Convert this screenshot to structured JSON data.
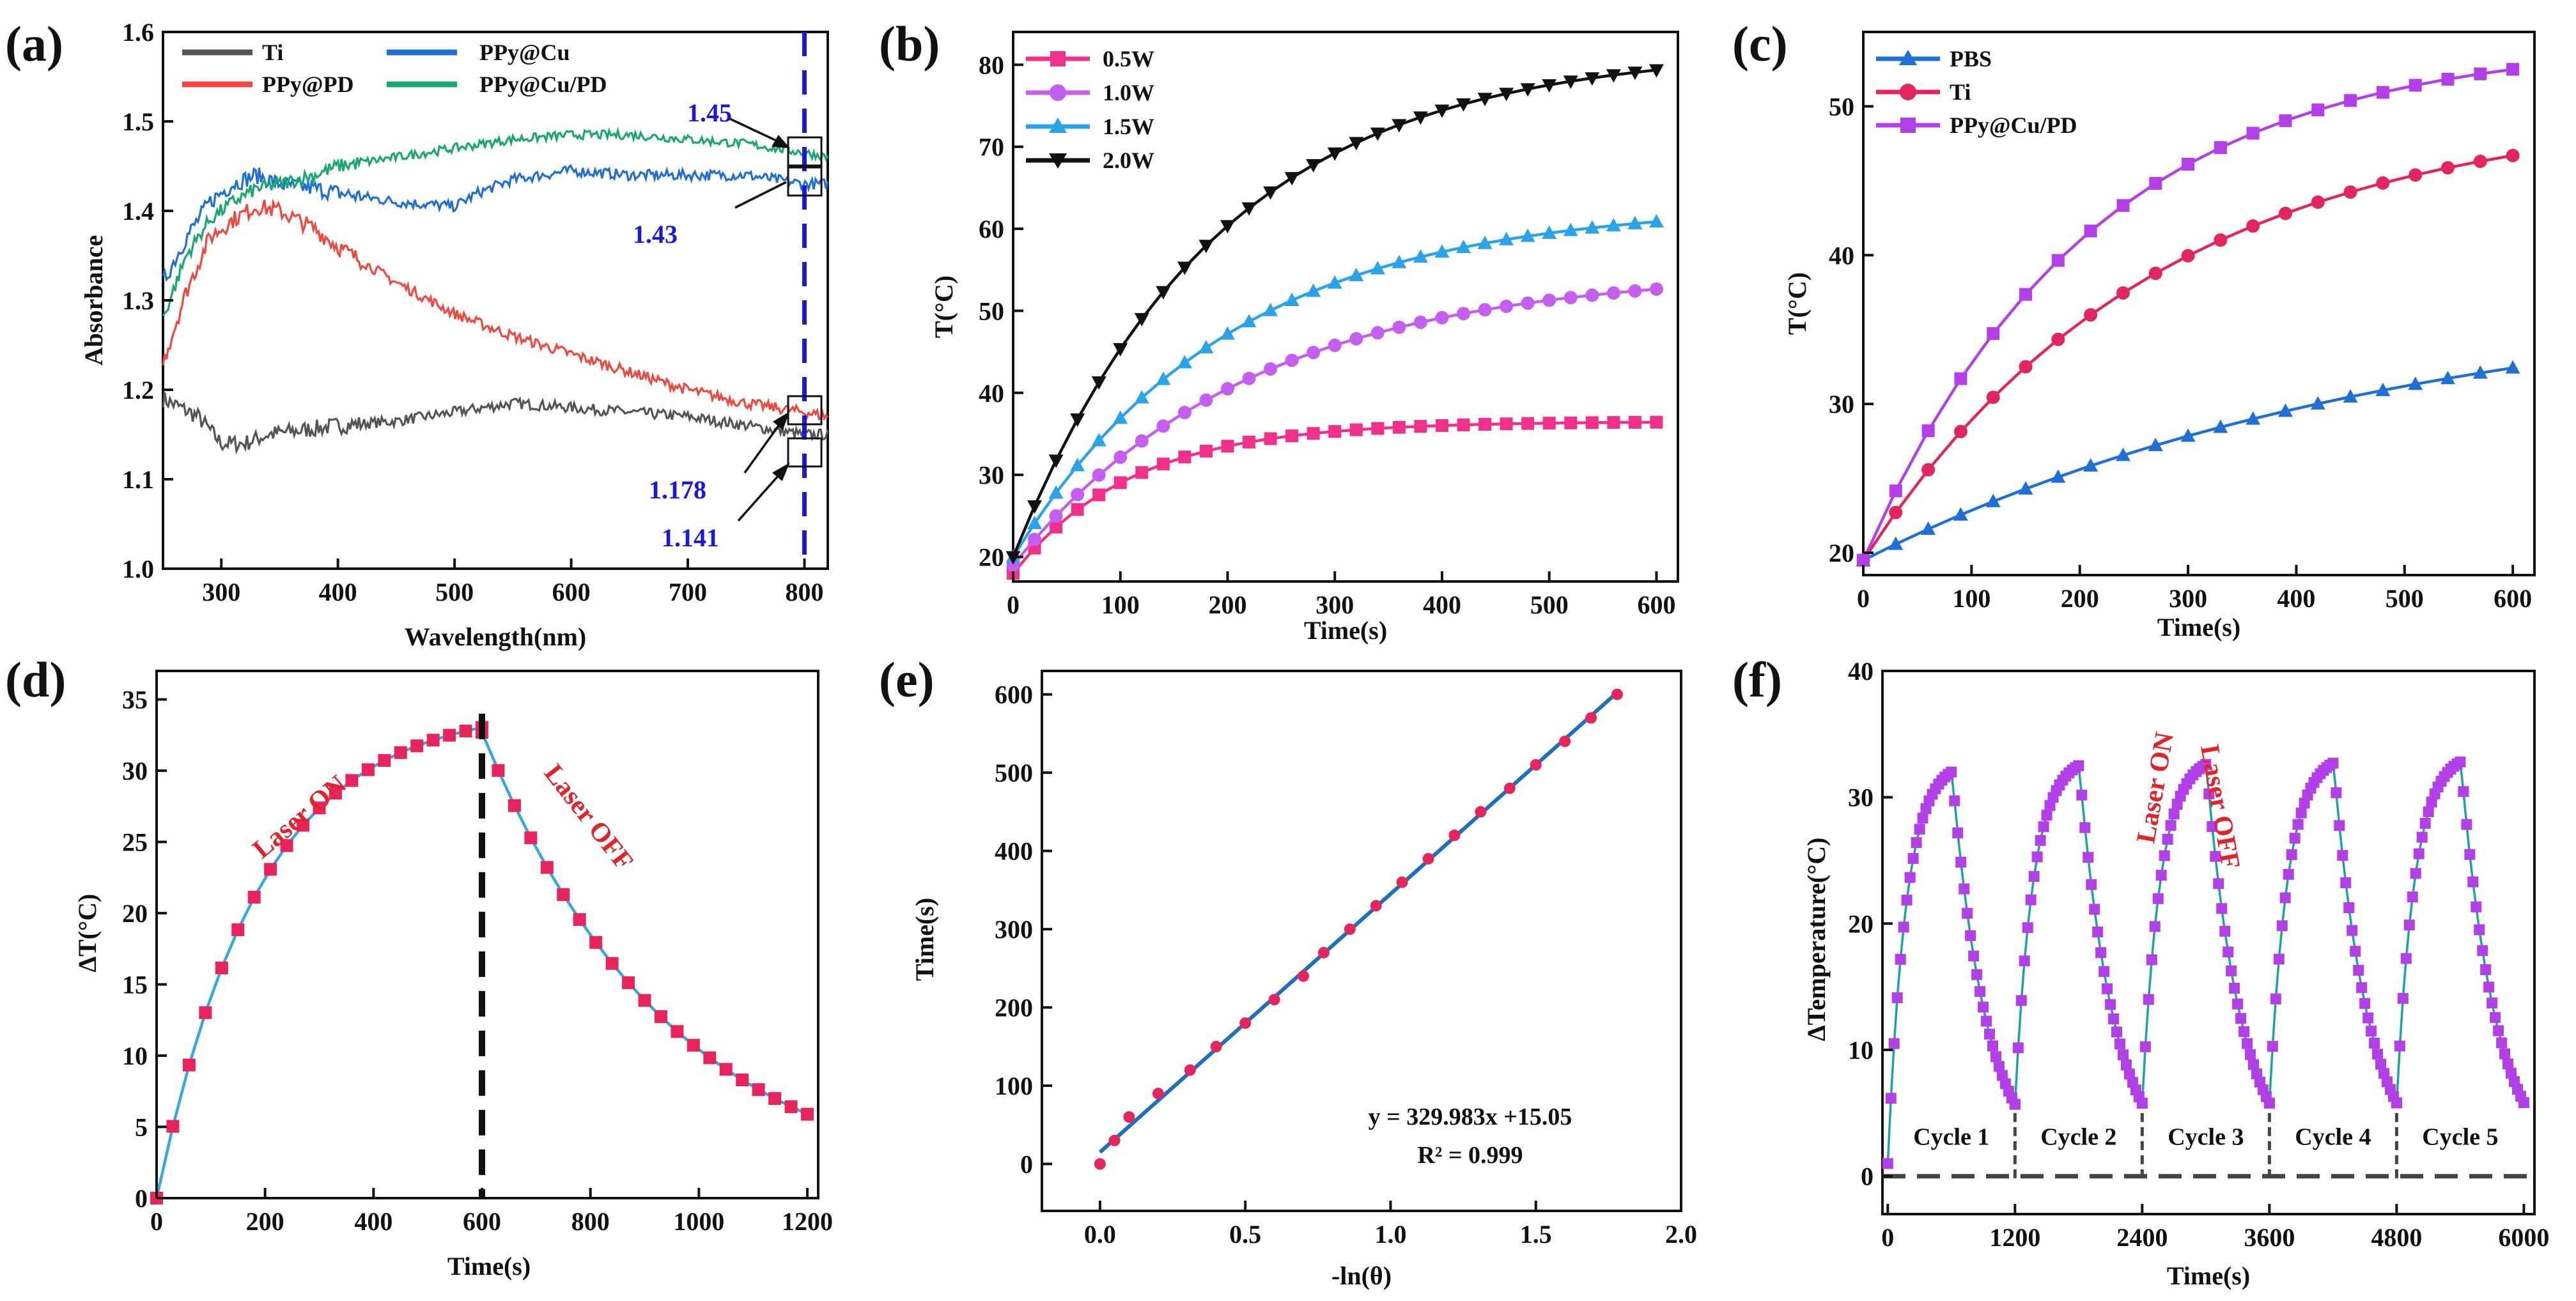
{
  "chart_data": [
    {
      "id": "a",
      "type": "line",
      "panel_label": "(a)",
      "xlabel": "Wavelength(nm)",
      "ylabel": "Absorbance",
      "xlim": [
        250,
        820
      ],
      "ylim": [
        1.0,
        1.6
      ],
      "xticks": [
        300,
        400,
        500,
        600,
        700,
        800
      ],
      "yticks": [
        1.0,
        1.1,
        1.2,
        1.3,
        1.4,
        1.5,
        1.6
      ],
      "series": [
        {
          "name": "Ti",
          "color": "#555555",
          "noise": 0.006,
          "x": [
            250,
            265,
            280,
            300,
            320,
            340,
            370,
            400,
            450,
            500,
            550,
            600,
            650,
            700,
            750,
            800,
            820
          ],
          "y": [
            1.19,
            1.18,
            1.17,
            1.14,
            1.14,
            1.15,
            1.155,
            1.16,
            1.165,
            1.175,
            1.185,
            1.18,
            1.175,
            1.17,
            1.16,
            1.15,
            1.15
          ]
        },
        {
          "name": "PPy@Cu",
          "color": "#1f6fd6",
          "noise": 0.006,
          "x": [
            250,
            270,
            290,
            310,
            330,
            350,
            380,
            400,
            450,
            500,
            520,
            550,
            600,
            650,
            700,
            750,
            800,
            820
          ],
          "y": [
            1.32,
            1.37,
            1.41,
            1.43,
            1.44,
            1.43,
            1.425,
            1.42,
            1.41,
            1.405,
            1.42,
            1.435,
            1.445,
            1.44,
            1.44,
            1.44,
            1.43,
            1.43
          ]
        },
        {
          "name": "PPy@PD",
          "color": "#f0473e",
          "noise": 0.006,
          "x": [
            250,
            270,
            290,
            310,
            330,
            350,
            380,
            400,
            450,
            500,
            550,
            600,
            650,
            700,
            750,
            800,
            820
          ],
          "y": [
            1.23,
            1.31,
            1.37,
            1.39,
            1.405,
            1.4,
            1.38,
            1.36,
            1.32,
            1.285,
            1.26,
            1.24,
            1.22,
            1.2,
            1.185,
            1.175,
            1.17
          ]
        },
        {
          "name": "PPy@Cu/PD",
          "color": "#1aa773",
          "noise": 0.005,
          "x": [
            250,
            270,
            290,
            310,
            330,
            350,
            380,
            400,
            450,
            500,
            550,
            600,
            650,
            700,
            750,
            800,
            820
          ],
          "y": [
            1.28,
            1.35,
            1.39,
            1.41,
            1.425,
            1.43,
            1.44,
            1.45,
            1.46,
            1.47,
            1.48,
            1.485,
            1.485,
            1.48,
            1.475,
            1.465,
            1.46
          ]
        }
      ],
      "annotations": [
        "1.45",
        "1.43",
        "1.178",
        "1.141"
      ]
    },
    {
      "id": "b",
      "type": "line",
      "panel_label": "(b)",
      "xlabel": "Time(s)",
      "ylabel": "T(°C)",
      "xlim": [
        0,
        620
      ],
      "ylim": [
        17,
        84
      ],
      "xticks": [
        0,
        100,
        200,
        300,
        400,
        500,
        600
      ],
      "yticks": [
        20,
        30,
        40,
        50,
        60,
        70,
        80
      ],
      "series": [
        {
          "name": "0.5W",
          "color": "#f0308a",
          "marker": "square",
          "kind": "exp",
          "y0": 18,
          "yinf": 36.5,
          "tau": 110,
          "start": 0,
          "end": 600,
          "step": 20
        },
        {
          "name": "1.0W",
          "color": "#c45ef0",
          "marker": "circle",
          "kind": "exp",
          "y0": 19,
          "yinf": 55,
          "tau": 220,
          "start": 0,
          "end": 600,
          "step": 20
        },
        {
          "name": "1.5W",
          "color": "#2ba3e8",
          "marker": "triangle",
          "kind": "exp",
          "y0": 20,
          "yinf": 63,
          "tau": 200,
          "start": 0,
          "end": 600,
          "step": 20
        },
        {
          "name": "2.0W",
          "color": "#111111",
          "marker": "triangle-down",
          "kind": "exp",
          "y0": 20,
          "yinf": 82,
          "tau": 190,
          "start": 0,
          "end": 600,
          "step": 20
        }
      ]
    },
    {
      "id": "c",
      "type": "line",
      "panel_label": "(c)",
      "xlabel": "Time(s)",
      "ylabel": "T(°C)",
      "xlim": [
        0,
        620
      ],
      "ylim": [
        18.5,
        55
      ],
      "xticks": [
        0,
        100,
        200,
        300,
        400,
        500,
        600
      ],
      "yticks": [
        20,
        30,
        40,
        50
      ],
      "series": [
        {
          "name": "PBS",
          "color": "#1f6fd6",
          "marker": "triangle",
          "kind": "exp",
          "y0": 19.5,
          "yinf": 38,
          "tau": 500,
          "start": 0,
          "end": 600,
          "step": 30
        },
        {
          "name": "Ti",
          "color": "#e2255f",
          "marker": "circle",
          "kind": "exp",
          "y0": 19.5,
          "yinf": 50,
          "tau": 270,
          "start": 0,
          "end": 600,
          "step": 30
        },
        {
          "name": "PPy@Cu/PD",
          "color": "#b23fe8",
          "marker": "square",
          "kind": "exp",
          "y0": 19.5,
          "yinf": 54.5,
          "tau": 210,
          "start": 0,
          "end": 600,
          "step": 30
        }
      ]
    },
    {
      "id": "d",
      "type": "line",
      "panel_label": "(d)",
      "xlabel": "Time(s)",
      "ylabel": "∆T(°C)",
      "xlim": [
        0,
        1220
      ],
      "ylim": [
        0,
        37
      ],
      "xticks": [
        0,
        200,
        400,
        600,
        800,
        1000,
        1200
      ],
      "yticks": [
        0,
        5,
        10,
        15,
        20,
        25,
        30,
        35
      ],
      "series": [
        {
          "name": "Laser ON",
          "color": "#e8245f",
          "line_color": "#33a9e0",
          "marker": "square",
          "kind": "exp",
          "y0": 0,
          "yinf": 34.5,
          "tau": 190,
          "start": 0,
          "end": 600,
          "step": 30
        },
        {
          "name": "Laser OFF",
          "color": "#e8245f",
          "line_color": "#33a9e0",
          "marker": "square",
          "kind": "decay",
          "t0": 600,
          "y0": 32.7,
          "yinf": 0,
          "tau": 350,
          "start": 600,
          "end": 1200,
          "step": 30
        }
      ],
      "annotations": [
        "Laser ON",
        "Laser OFF"
      ]
    },
    {
      "id": "e",
      "type": "scatter",
      "panel_label": "(e)",
      "xlabel": "-ln(θ)",
      "ylabel": "Time(s)",
      "xlim": [
        -0.2,
        2.0
      ],
      "ylim": [
        -60,
        630
      ],
      "xticks": [
        0.0,
        0.5,
        1.0,
        1.5,
        2.0
      ],
      "yticks": [
        0,
        100,
        200,
        300,
        400,
        500,
        600
      ],
      "fit": {
        "slope": 329.983,
        "intercept": 15.05,
        "color": "#1f6fbe",
        "x_range": [
          0.0,
          1.78
        ]
      },
      "points_x": [
        0.0,
        0.05,
        0.1,
        0.2,
        0.31,
        0.4,
        0.5,
        0.6,
        0.7,
        0.77,
        0.86,
        0.95,
        1.04,
        1.13,
        1.22,
        1.31,
        1.41,
        1.5,
        1.6,
        1.69,
        1.78
      ],
      "points_y": [
        0,
        30,
        60,
        90,
        120,
        150,
        180,
        210,
        240,
        270,
        300,
        330,
        360,
        390,
        420,
        450,
        480,
        510,
        540,
        570,
        600
      ],
      "point_color": "#e8245f",
      "annotations": [
        "y = 329.983x +15.05",
        "R² = 0.999"
      ]
    },
    {
      "id": "f",
      "type": "line",
      "panel_label": "(f)",
      "xlabel": "Time(s)",
      "ylabel": "ΔTemperature(°C)",
      "xlim": [
        -50,
        6100
      ],
      "ylim": [
        -3,
        40
      ],
      "xticks": [
        0,
        1200,
        2400,
        3600,
        4800,
        6000
      ],
      "yticks": [
        0,
        10,
        20,
        30,
        40
      ],
      "cycle_length": 1200,
      "heat_duration": 600,
      "heat_tau": 170,
      "cool_tau": 330,
      "peak_values": [
        32,
        32.5,
        32.6,
        32.7,
        32.8
      ],
      "line_color": "#1aa3a0",
      "marker_color": "#b23fe8",
      "cycles": [
        "Cycle 1",
        "Cycle 2",
        "Cycle 3",
        "Cycle 4",
        "Cycle 5"
      ],
      "annotations": [
        "Laser ON",
        "Laser OFF"
      ]
    }
  ]
}
